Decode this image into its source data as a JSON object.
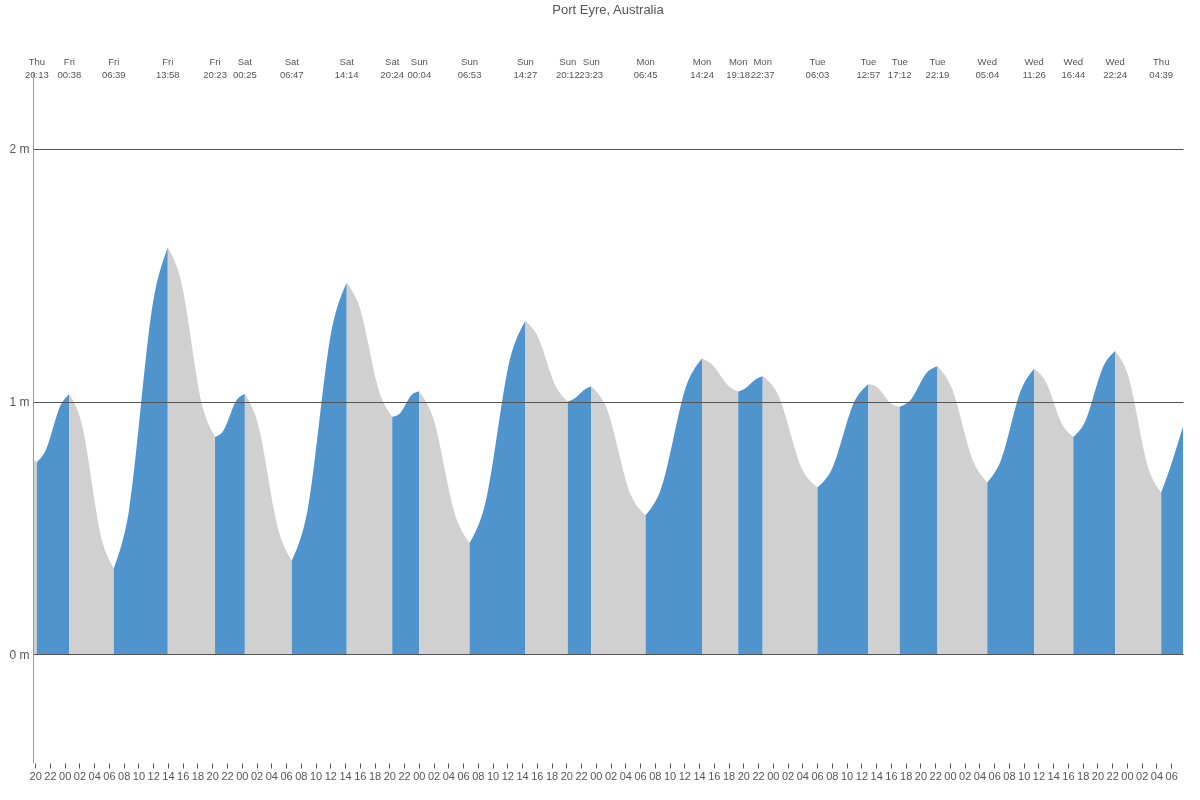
{
  "chart_data": {
    "type": "area",
    "title": "Port Eyre, Australia",
    "grid": "y",
    "xlim": [
      19.7,
      175.6
    ],
    "ylim": [
      -0.43,
      2.3
    ],
    "yticks": [
      {
        "value": 0,
        "label": "0 m"
      },
      {
        "value": 1,
        "label": "1 m"
      },
      {
        "value": 2,
        "label": "2 m"
      }
    ],
    "xticks": [
      {
        "value": 20,
        "label": "20"
      },
      {
        "value": 22,
        "label": "22"
      },
      {
        "value": 24,
        "label": "00"
      },
      {
        "value": 26,
        "label": "02"
      },
      {
        "value": 28,
        "label": "04"
      },
      {
        "value": 30,
        "label": "06"
      },
      {
        "value": 32,
        "label": "08"
      },
      {
        "value": 34,
        "label": "10"
      },
      {
        "value": 36,
        "label": "12"
      },
      {
        "value": 38,
        "label": "14"
      },
      {
        "value": 40,
        "label": "16"
      },
      {
        "value": 42,
        "label": "18"
      },
      {
        "value": 44,
        "label": "20"
      },
      {
        "value": 46,
        "label": "22"
      },
      {
        "value": 48,
        "label": "00"
      },
      {
        "value": 50,
        "label": "02"
      },
      {
        "value": 52,
        "label": "04"
      },
      {
        "value": 54,
        "label": "06"
      },
      {
        "value": 56,
        "label": "08"
      },
      {
        "value": 58,
        "label": "10"
      },
      {
        "value": 60,
        "label": "12"
      },
      {
        "value": 62,
        "label": "14"
      },
      {
        "value": 64,
        "label": "16"
      },
      {
        "value": 66,
        "label": "18"
      },
      {
        "value": 68,
        "label": "20"
      },
      {
        "value": 70,
        "label": "22"
      },
      {
        "value": 72,
        "label": "00"
      },
      {
        "value": 74,
        "label": "02"
      },
      {
        "value": 76,
        "label": "04"
      },
      {
        "value": 78,
        "label": "06"
      },
      {
        "value": 80,
        "label": "08"
      },
      {
        "value": 82,
        "label": "10"
      },
      {
        "value": 84,
        "label": "12"
      },
      {
        "value": 86,
        "label": "14"
      },
      {
        "value": 88,
        "label": "16"
      },
      {
        "value": 90,
        "label": "18"
      },
      {
        "value": 92,
        "label": "20"
      },
      {
        "value": 94,
        "label": "22"
      },
      {
        "value": 96,
        "label": "00"
      },
      {
        "value": 98,
        "label": "02"
      },
      {
        "value": 100,
        "label": "04"
      },
      {
        "value": 102,
        "label": "06"
      },
      {
        "value": 104,
        "label": "08"
      },
      {
        "value": 106,
        "label": "10"
      },
      {
        "value": 108,
        "label": "12"
      },
      {
        "value": 110,
        "label": "14"
      },
      {
        "value": 112,
        "label": "16"
      },
      {
        "value": 114,
        "label": "18"
      },
      {
        "value": 116,
        "label": "20"
      },
      {
        "value": 118,
        "label": "22"
      },
      {
        "value": 120,
        "label": "00"
      },
      {
        "value": 122,
        "label": "02"
      },
      {
        "value": 124,
        "label": "04"
      },
      {
        "value": 126,
        "label": "06"
      },
      {
        "value": 128,
        "label": "08"
      },
      {
        "value": 130,
        "label": "10"
      },
      {
        "value": 132,
        "label": "12"
      },
      {
        "value": 134,
        "label": "14"
      },
      {
        "value": 136,
        "label": "16"
      },
      {
        "value": 138,
        "label": "18"
      },
      {
        "value": 140,
        "label": "20"
      },
      {
        "value": 142,
        "label": "22"
      },
      {
        "value": 144,
        "label": "00"
      },
      {
        "value": 146,
        "label": "02"
      },
      {
        "value": 148,
        "label": "04"
      },
      {
        "value": 150,
        "label": "06"
      },
      {
        "value": 152,
        "label": "08"
      },
      {
        "value": 154,
        "label": "10"
      },
      {
        "value": 156,
        "label": "12"
      },
      {
        "value": 158,
        "label": "14"
      },
      {
        "value": 160,
        "label": "16"
      },
      {
        "value": 162,
        "label": "18"
      },
      {
        "value": 164,
        "label": "20"
      },
      {
        "value": 166,
        "label": "22"
      },
      {
        "value": 168,
        "label": "00"
      },
      {
        "value": 170,
        "label": "02"
      },
      {
        "value": 172,
        "label": "04"
      },
      {
        "value": 174,
        "label": "06"
      }
    ],
    "series": [
      {
        "color": "#d0d0d0",
        "x": [
          19.7,
          20.22
        ],
        "values": [
          0.77,
          0.76
        ]
      },
      {
        "color": "#4f94cd",
        "x": [
          20.22,
          21.32,
          23.53,
          24.63
        ],
        "values": [
          0.76,
          0.8,
          0.99,
          1.03
        ]
      },
      {
        "color": "#d0d0d0",
        "x": [
          24.63,
          26.14,
          29.15,
          30.65
        ],
        "values": [
          1.03,
          0.93,
          0.44,
          0.34
        ]
      },
      {
        "color": "#4f94cd",
        "x": [
          30.65,
          32.48,
          36.14,
          37.97
        ],
        "values": [
          0.34,
          0.53,
          1.42,
          1.61
        ]
      },
      {
        "color": "#d0d0d0",
        "x": [
          37.97,
          39.57,
          42.78,
          44.38
        ],
        "values": [
          1.61,
          1.5,
          0.97,
          0.86
        ]
      },
      {
        "color": "#4f94cd",
        "x": [
          44.38,
          45.39,
          47.41,
          48.42
        ],
        "values": [
          0.86,
          0.88,
          1.01,
          1.03
        ]
      },
      {
        "color": "#d0d0d0",
        "x": [
          48.42,
          50.01,
          53.19,
          54.78
        ],
        "values": [
          1.03,
          0.93,
          0.47,
          0.37
        ]
      },
      {
        "color": "#4f94cd",
        "x": [
          54.78,
          56.64,
          60.37,
          62.23
        ],
        "values": [
          0.37,
          0.53,
          1.31,
          1.47
        ]
      },
      {
        "color": "#d0d0d0",
        "x": [
          62.23,
          63.77,
          66.86,
          68.4
        ],
        "values": [
          1.47,
          1.39,
          1.02,
          0.94
        ]
      },
      {
        "color": "#4f94cd",
        "x": [
          68.4,
          69.32,
          71.15,
          72.07
        ],
        "values": [
          0.94,
          0.95,
          1.03,
          1.04
        ]
      },
      {
        "color": "#d0d0d0",
        "x": [
          72.07,
          73.77,
          77.18,
          78.88
        ],
        "values": [
          1.04,
          0.95,
          0.53,
          0.44
        ]
      },
      {
        "color": "#4f94cd",
        "x": [
          78.88,
          80.77,
          84.56,
          86.45
        ],
        "values": [
          0.44,
          0.57,
          1.19,
          1.32
        ]
      },
      {
        "color": "#d0d0d0",
        "x": [
          86.45,
          87.89,
          90.76,
          92.2
        ],
        "values": [
          1.32,
          1.27,
          1.05,
          1.0
        ]
      },
      {
        "color": "#4f94cd",
        "x": [
          92.2,
          92.99,
          94.59,
          95.38
        ],
        "values": [
          1.0,
          1.01,
          1.05,
          1.06
        ]
      },
      {
        "color": "#d0d0d0",
        "x": [
          95.38,
          97.22,
          100.91,
          102.75
        ],
        "values": [
          1.06,
          0.99,
          0.62,
          0.55
        ]
      },
      {
        "color": "#4f94cd",
        "x": [
          102.75,
          104.66,
          108.49,
          110.4
        ],
        "values": [
          0.55,
          0.64,
          1.08,
          1.17
        ]
      },
      {
        "color": "#d0d0d0",
        "x": [
          110.4,
          111.63,
          114.08,
          115.3
        ],
        "values": [
          1.17,
          1.15,
          1.06,
          1.04
        ]
      },
      {
        "color": "#4f94cd",
        "x": [
          115.3,
          116.13,
          117.79,
          118.62
        ],
        "values": [
          1.04,
          1.05,
          1.09,
          1.1
        ]
      },
      {
        "color": "#d0d0d0",
        "x": [
          118.62,
          120.48,
          124.19,
          126.05
        ],
        "values": [
          1.1,
          1.04,
          0.72,
          0.66
        ]
      },
      {
        "color": "#4f94cd",
        "x": [
          126.05,
          127.78,
          131.23,
          132.95
        ],
        "values": [
          0.66,
          0.72,
          1.01,
          1.07
        ]
      },
      {
        "color": "#d0d0d0",
        "x": [
          132.95,
          134.01,
          136.14,
          137.2
        ],
        "values": [
          1.07,
          1.06,
          0.99,
          0.98
        ]
      },
      {
        "color": "#4f94cd",
        "x": [
          137.2,
          138.48,
          141.04,
          142.32
        ],
        "values": [
          0.98,
          1.0,
          1.12,
          1.14
        ]
      },
      {
        "color": "#d0d0d0",
        "x": [
          142.32,
          144.01,
          147.38,
          149.07
        ],
        "values": [
          1.14,
          1.07,
          0.75,
          0.68
        ]
      },
      {
        "color": "#4f94cd",
        "x": [
          149.07,
          150.66,
          153.84,
          155.43
        ],
        "values": [
          0.68,
          0.75,
          1.06,
          1.13
        ]
      },
      {
        "color": "#d0d0d0",
        "x": [
          155.43,
          156.76,
          159.41,
          160.73
        ],
        "values": [
          1.13,
          1.09,
          0.9,
          0.86
        ]
      },
      {
        "color": "#4f94cd",
        "x": [
          160.73,
          162.15,
          164.98,
          166.4
        ],
        "values": [
          0.86,
          0.91,
          1.15,
          1.2
        ]
      },
      {
        "color": "#d0d0d0",
        "x": [
          166.4,
          167.96,
          171.09,
          172.65
        ],
        "values": [
          1.2,
          1.12,
          0.72,
          0.64
        ]
      },
      {
        "color": "#4f94cd",
        "x": [
          172.65,
          174.1,
          175.6
        ],
        "values": [
          0.64,
          0.76,
          0.9
        ]
      }
    ],
    "annotations": [
      "Thu 20:13",
      "Fri 00:38",
      "Fri 06:39",
      "Fri 13:58",
      "Fri 20:23",
      "Sat 00:25",
      "Sat 06:47",
      "Sat 14:14",
      "Sat 20:24",
      "Sun 00:04",
      "Sun 06:53",
      "Sun 14:27",
      "Sun 20:12",
      "Sun 23:23",
      "Mon 06:45",
      "Mon 14:24",
      "Mon 19:18",
      "Mon 22:37",
      "Tue 06:03",
      "Tue 12:57",
      "Tue 17:12",
      "Tue 22:19",
      "Wed 05:04",
      "Wed 11:26",
      "Wed 16:44",
      "Wed 22:24",
      "Thu 04:39"
    ]
  }
}
